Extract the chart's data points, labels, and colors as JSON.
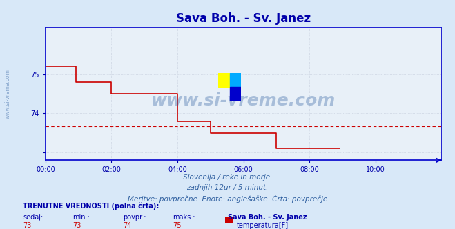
{
  "title": "Sava Boh. - Sv. Janez",
  "bg_color": "#d8e8f8",
  "plot_bg_color": "#e8f0f8",
  "line_color": "#cc0000",
  "avg_line_color": "#cc0000",
  "axis_color": "#0000cc",
  "grid_color": "#c0c8d8",
  "title_color": "#0000aa",
  "xlabel_color": "#3060a0",
  "ylabel_color": "#3060a0",
  "tick_color": "#0000aa",
  "watermark_color": "#3060a0",
  "footer_color": "#3060a0",
  "label_color_bold": "#0000aa",
  "value_color": "#cc0000",
  "legend_color": "#0000aa",
  "ylim": [
    72.8,
    76.2
  ],
  "yticks": [
    73,
    74,
    75,
    76
  ],
  "ytick_labels": [
    "",
    "74",
    "75",
    ""
  ],
  "xtick_positions": [
    0,
    24,
    48,
    72,
    96,
    120,
    144
  ],
  "xtick_labels": [
    "00:00",
    "02:00",
    "04:00",
    "06:00",
    "08:00",
    "10:00",
    ""
  ],
  "avg_value": 73.67,
  "footer_line1": "Slovenija / reke in morje.",
  "footer_line2": "zadnjih 12ur / 5 minut.",
  "footer_line3": "Meritve: povprečne  Enote: anglešaške  Črta: povprečje",
  "stats_header": "TRENUTNE VREDNOSTI (polna črta):",
  "stats_cols": [
    "sedaj:",
    "min.:",
    "povpr.:",
    "maks.:"
  ],
  "stats_vals": [
    "73",
    "73",
    "74",
    "75"
  ],
  "legend_station": "Sava Boh. - Sv. Janez",
  "legend_var": "temperatura[F]",
  "legend_color_box": "#cc0000",
  "watermark": "www.si-vreme.com",
  "data_x": [
    0,
    1,
    2,
    3,
    4,
    5,
    6,
    7,
    8,
    9,
    10,
    11,
    12,
    13,
    14,
    15,
    16,
    17,
    18,
    19,
    20,
    21,
    22,
    23,
    24,
    25,
    26,
    27,
    28,
    29,
    30,
    31,
    32,
    33,
    34,
    35,
    36,
    37,
    38,
    39,
    40,
    41,
    42,
    43,
    44,
    45,
    46,
    47,
    48,
    49,
    50,
    51,
    52,
    53,
    54,
    55,
    56,
    57,
    58,
    59,
    60,
    61,
    62,
    63,
    64,
    65,
    66,
    67,
    68,
    69,
    70,
    71,
    72,
    73,
    74,
    75,
    76,
    77,
    78,
    79,
    80,
    81,
    82,
    83,
    84,
    85,
    86,
    87,
    88,
    89,
    90,
    91,
    92,
    93,
    94,
    95,
    96,
    97,
    98,
    99,
    100,
    101,
    102,
    103,
    104,
    105,
    106,
    107,
    108,
    109,
    110,
    111,
    112,
    113,
    114,
    115,
    116,
    117,
    118,
    119,
    120,
    121,
    122,
    123,
    124,
    125,
    126,
    127,
    128,
    129,
    130,
    131,
    132,
    133,
    134,
    135,
    136,
    137,
    138,
    139,
    140,
    141,
    142,
    143
  ],
  "data_y": [
    75.2,
    75.2,
    75.2,
    75.2,
    75.2,
    75.2,
    75.2,
    75.2,
    75.2,
    75.2,
    75.2,
    74.8,
    74.8,
    74.8,
    74.8,
    74.8,
    74.8,
    74.8,
    74.8,
    74.8,
    74.8,
    74.8,
    74.8,
    74.8,
    74.5,
    74.5,
    74.5,
    74.5,
    74.5,
    74.5,
    74.5,
    74.5,
    74.5,
    74.5,
    74.5,
    74.5,
    74.5,
    74.5,
    74.5,
    74.5,
    74.5,
    74.5,
    74.5,
    74.5,
    74.5,
    74.5,
    74.5,
    74.5,
    73.8,
    73.8,
    73.8,
    73.8,
    73.8,
    73.8,
    73.8,
    73.8,
    73.8,
    73.8,
    73.8,
    73.8,
    73.5,
    73.5,
    73.5,
    73.5,
    73.5,
    73.5,
    73.5,
    73.5,
    73.5,
    73.5,
    73.5,
    73.5,
    73.5,
    73.5,
    73.5,
    73.5,
    73.5,
    73.5,
    73.5,
    73.5,
    73.5,
    73.5,
    73.5,
    73.5,
    73.1,
    73.1,
    73.1,
    73.1,
    73.1,
    73.1,
    73.1,
    73.1,
    73.1,
    73.1,
    73.1,
    73.1,
    73.1,
    73.1,
    73.1,
    73.1,
    73.1,
    73.1,
    73.1,
    73.1,
    73.1,
    73.1,
    73.1,
    73.1,
    null,
    null,
    null,
    null,
    null,
    null,
    null,
    null,
    null,
    null,
    null,
    null,
    null,
    null,
    null,
    null,
    null,
    null,
    null,
    null,
    null,
    null,
    null,
    null,
    null,
    null,
    null,
    null,
    null,
    null,
    null,
    null,
    null,
    null,
    null,
    null
  ]
}
